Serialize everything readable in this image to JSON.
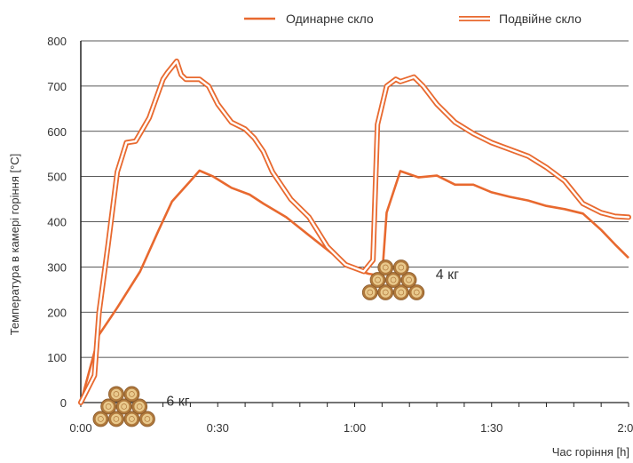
{
  "colors": {
    "line": "#e8692f",
    "grid": "#222222",
    "text": "#333333",
    "wood_light": "#e9c98c",
    "wood_dark": "#b0793c"
  },
  "chart_data": {
    "type": "line",
    "xlabel": "Час горіння [h]",
    "ylabel": "Температура в камері горіння [°C]",
    "x_ticks": [
      "0:00",
      "0:30",
      "1:00",
      "1:30",
      "2:00"
    ],
    "y_ticks": [
      "0",
      "100",
      "200",
      "300",
      "400",
      "500",
      "600",
      "700",
      "800"
    ],
    "xlim": [
      0,
      120
    ],
    "ylim": [
      0,
      800
    ],
    "grid": "horizontal",
    "legend_position": "top",
    "series": [
      {
        "name": "Одинарне скло",
        "style": "single",
        "x": [
          0,
          4,
          8,
          13,
          17,
          20,
          24,
          26,
          29,
          33,
          37,
          40,
          45,
          50,
          55,
          60,
          63,
          66,
          67,
          70,
          74,
          78,
          82,
          86,
          90,
          94,
          98,
          102,
          106,
          110,
          114,
          117,
          120
        ],
        "y": [
          0,
          150,
          210,
          290,
          380,
          445,
          490,
          513,
          500,
          475,
          460,
          440,
          410,
          370,
          330,
          295,
          285,
          280,
          420,
          512,
          498,
          502,
          482,
          482,
          465,
          455,
          447,
          435,
          428,
          418,
          382,
          350,
          320
        ]
      },
      {
        "name": "Подвійне скло",
        "style": "double",
        "x": [
          0,
          3,
          4,
          6,
          8,
          10,
          12,
          13,
          15,
          18,
          19,
          21,
          22,
          23,
          24,
          26,
          28,
          30,
          33,
          36,
          38,
          40,
          42,
          46,
          50,
          54,
          58,
          62,
          64,
          65,
          67,
          69,
          70,
          73,
          75,
          78,
          82,
          86,
          90,
          94,
          98,
          102,
          106,
          110,
          114,
          117,
          120
        ],
        "y": [
          0,
          60,
          200,
          350,
          510,
          575,
          578,
          595,
          630,
          715,
          730,
          755,
          725,
          715,
          715,
          715,
          700,
          660,
          620,
          605,
          585,
          555,
          510,
          450,
          410,
          345,
          305,
          290,
          315,
          615,
          700,
          715,
          710,
          720,
          700,
          660,
          620,
          595,
          575,
          560,
          545,
          520,
          490,
          440,
          420,
          412,
          410
        ]
      }
    ],
    "annotations": [
      {
        "x": 3,
        "y": 5,
        "label": "6 кг"
      },
      {
        "x": 62,
        "y": 285,
        "label": "4 кг"
      }
    ]
  }
}
